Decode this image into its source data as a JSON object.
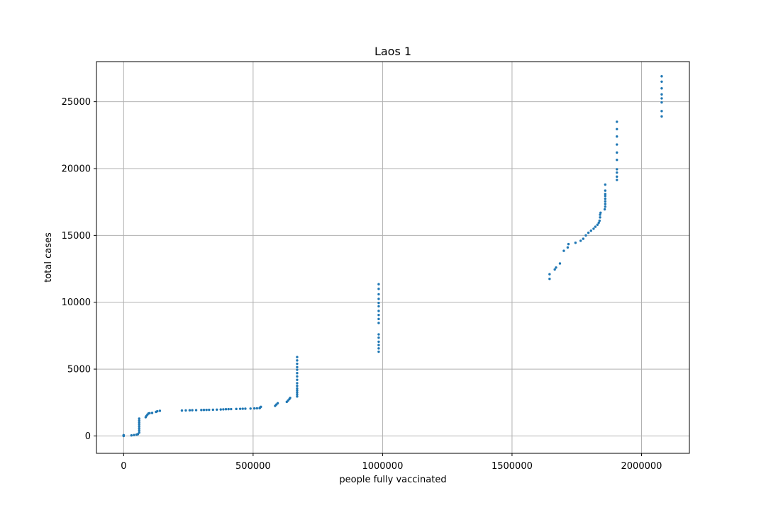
{
  "chart_data": {
    "type": "scatter",
    "title": "Laos 1",
    "xlabel": "people fully vaccinated",
    "ylabel": "total cases",
    "xlim": [
      -105000,
      2185000
    ],
    "ylim": [
      -1300,
      28000
    ],
    "xticks": [
      0,
      500000,
      1000000,
      1500000,
      2000000
    ],
    "xtick_labels": [
      "0",
      "500000",
      "1000000",
      "1500000",
      "2000000"
    ],
    "yticks": [
      0,
      5000,
      10000,
      15000,
      20000,
      25000
    ],
    "ytick_labels": [
      "0",
      "5000",
      "10000",
      "15000",
      "20000",
      "25000"
    ],
    "grid": true,
    "marker_color": "#1f77b4",
    "series": [
      {
        "points": [
          [
            0,
            0
          ],
          [
            0,
            10
          ],
          [
            0,
            25
          ],
          [
            0,
            45
          ],
          [
            0,
            60
          ],
          [
            30000,
            40
          ],
          [
            40000,
            70
          ],
          [
            50000,
            110
          ],
          [
            55000,
            130
          ],
          [
            60000,
            250
          ],
          [
            60000,
            400
          ],
          [
            60000,
            550
          ],
          [
            60000,
            700
          ],
          [
            60000,
            850
          ],
          [
            60000,
            1000
          ],
          [
            60000,
            1150
          ],
          [
            60000,
            1300
          ],
          [
            85000,
            1400
          ],
          [
            88000,
            1500
          ],
          [
            92000,
            1600
          ],
          [
            96000,
            1680
          ],
          [
            100000,
            1700
          ],
          [
            110000,
            1720
          ],
          [
            125000,
            1800
          ],
          [
            130000,
            1850
          ],
          [
            140000,
            1880
          ],
          [
            225000,
            1900
          ],
          [
            240000,
            1910
          ],
          [
            255000,
            1920
          ],
          [
            265000,
            1925
          ],
          [
            280000,
            1930
          ],
          [
            300000,
            1940
          ],
          [
            310000,
            1945
          ],
          [
            320000,
            1950
          ],
          [
            330000,
            1955
          ],
          [
            345000,
            1960
          ],
          [
            360000,
            1970
          ],
          [
            375000,
            1980
          ],
          [
            385000,
            1990
          ],
          [
            395000,
            2000
          ],
          [
            405000,
            2005
          ],
          [
            415000,
            2010
          ],
          [
            435000,
            2020
          ],
          [
            450000,
            2030
          ],
          [
            460000,
            2035
          ],
          [
            470000,
            2040
          ],
          [
            490000,
            2050
          ],
          [
            505000,
            2060
          ],
          [
            515000,
            2070
          ],
          [
            525000,
            2080
          ],
          [
            527000,
            2120
          ],
          [
            530000,
            2180
          ],
          [
            585000,
            2250
          ],
          [
            590000,
            2350
          ],
          [
            595000,
            2450
          ],
          [
            630000,
            2550
          ],
          [
            635000,
            2650
          ],
          [
            640000,
            2750
          ],
          [
            643000,
            2850
          ],
          [
            670000,
            2950
          ],
          [
            670000,
            3100
          ],
          [
            670000,
            3250
          ],
          [
            670000,
            3400
          ],
          [
            670000,
            3550
          ],
          [
            670000,
            3750
          ],
          [
            670000,
            3950
          ],
          [
            670000,
            4200
          ],
          [
            670000,
            4450
          ],
          [
            670000,
            4700
          ],
          [
            670000,
            4950
          ],
          [
            670000,
            5150
          ],
          [
            670000,
            5400
          ],
          [
            670000,
            5650
          ],
          [
            670000,
            5900
          ],
          [
            985000,
            6300
          ],
          [
            985000,
            6550
          ],
          [
            985000,
            6800
          ],
          [
            985000,
            7050
          ],
          [
            985000,
            7350
          ],
          [
            985000,
            7600
          ],
          [
            985000,
            8450
          ],
          [
            985000,
            8750
          ],
          [
            985000,
            9050
          ],
          [
            985000,
            9350
          ],
          [
            985000,
            9700
          ],
          [
            985000,
            9950
          ],
          [
            985000,
            10250
          ],
          [
            985000,
            10600
          ],
          [
            985000,
            11000
          ],
          [
            985000,
            11350
          ],
          [
            1645000,
            11750
          ],
          [
            1645000,
            12100
          ],
          [
            1665000,
            12450
          ],
          [
            1670000,
            12600
          ],
          [
            1685000,
            12900
          ],
          [
            1700000,
            13850
          ],
          [
            1715000,
            14100
          ],
          [
            1718000,
            14350
          ],
          [
            1745000,
            14450
          ],
          [
            1765000,
            14600
          ],
          [
            1775000,
            14750
          ],
          [
            1785000,
            15000
          ],
          [
            1795000,
            15200
          ],
          [
            1805000,
            15350
          ],
          [
            1815000,
            15500
          ],
          [
            1822000,
            15650
          ],
          [
            1830000,
            15800
          ],
          [
            1835000,
            15950
          ],
          [
            1838000,
            16100
          ],
          [
            1840000,
            16350
          ],
          [
            1840000,
            16550
          ],
          [
            1842000,
            16700
          ],
          [
            1858000,
            16950
          ],
          [
            1860000,
            17150
          ],
          [
            1860000,
            17350
          ],
          [
            1860000,
            17550
          ],
          [
            1860000,
            17750
          ],
          [
            1860000,
            17950
          ],
          [
            1860000,
            18100
          ],
          [
            1860000,
            18350
          ],
          [
            1860000,
            18800
          ],
          [
            1905000,
            19150
          ],
          [
            1905000,
            19400
          ],
          [
            1905000,
            19700
          ],
          [
            1905000,
            19950
          ],
          [
            1905000,
            20650
          ],
          [
            1905000,
            21200
          ],
          [
            1905000,
            21800
          ],
          [
            1905000,
            22400
          ],
          [
            1905000,
            22950
          ],
          [
            1905000,
            23500
          ],
          [
            2078000,
            23900
          ],
          [
            2078000,
            24300
          ],
          [
            2078000,
            24950
          ],
          [
            2078000,
            25250
          ],
          [
            2078000,
            25550
          ],
          [
            2078000,
            26000
          ],
          [
            2078000,
            26500
          ],
          [
            2078000,
            26900
          ]
        ]
      }
    ]
  }
}
